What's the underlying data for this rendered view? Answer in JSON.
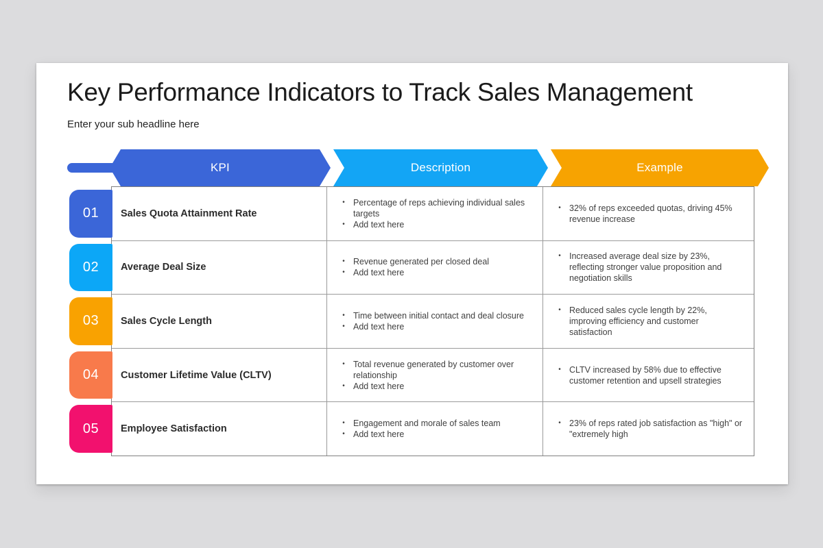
{
  "page": {
    "background_color": "#dcdcde",
    "card_color": "#ffffff"
  },
  "header": {
    "title": "Key Performance Indicators to Track Sales Management",
    "subtitle": "Enter your sub headline here"
  },
  "bullet_glyph": "•",
  "columns": [
    {
      "label": "KPI",
      "color": "#3b66d8"
    },
    {
      "label": "Description",
      "color": "#13a5f5"
    },
    {
      "label": "Example",
      "color": "#f7a301"
    }
  ],
  "table": {
    "border_color": "#7f7f7f",
    "rows": [
      {
        "number": "01",
        "badge_color": "#3b66d8",
        "kpi": "Sales Quota Attainment Rate",
        "description": [
          "Percentage of reps achieving individual sales targets",
          "Add text here"
        ],
        "example": [
          "32% of reps exceeded quotas, driving 45% revenue increase"
        ]
      },
      {
        "number": "02",
        "badge_color": "#0ca7f7",
        "kpi": "Average Deal Size",
        "description": [
          "Revenue generated per closed deal",
          "Add text here"
        ],
        "example": [
          "Increased average deal size by 23%, reflecting stronger value proposition and negotiation skills"
        ]
      },
      {
        "number": "03",
        "badge_color": "#f9a201",
        "kpi": "Sales Cycle Length",
        "description": [
          "Time between initial contact and deal closure",
          "Add text here"
        ],
        "example": [
          "Reduced sales cycle length by 22%, improving efficiency and customer satisfaction"
        ]
      },
      {
        "number": "04",
        "badge_color": "#f87a4b",
        "kpi": "Customer Lifetime Value (CLTV)",
        "description": [
          "Total revenue generated by customer over relationship",
          "Add text here"
        ],
        "example": [
          "CLTV increased by 58% due to effective customer retention and upsell strategies"
        ]
      },
      {
        "number": "05",
        "badge_color": "#f2116e",
        "kpi": "Employee Satisfaction",
        "description": [
          "Engagement and morale of sales team",
          "Add text here"
        ],
        "example": [
          "23% of reps rated job satisfaction as \"high\" or \"extremely high"
        ]
      }
    ]
  }
}
